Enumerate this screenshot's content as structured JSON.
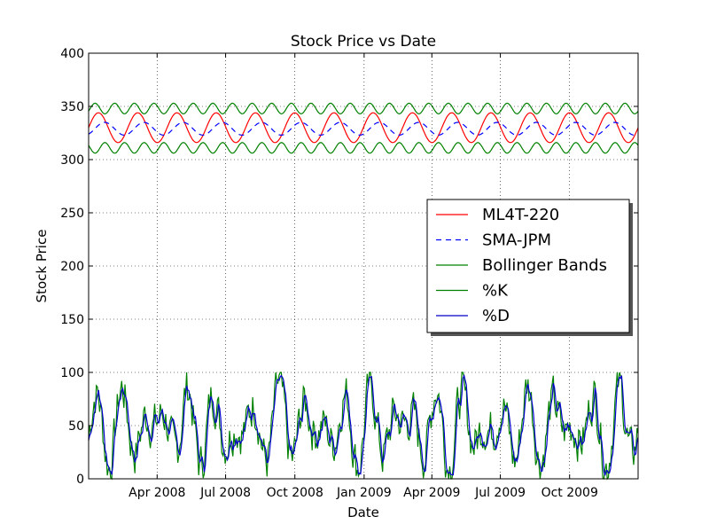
{
  "chart_data": {
    "type": "line",
    "title": "Stock Price vs Date",
    "xlabel": "Date",
    "ylabel": "Stock Price",
    "ylim": [
      0,
      400
    ],
    "xlim": [
      "2008-01-01",
      "2009-12-31"
    ],
    "yticks": [
      0,
      50,
      100,
      150,
      200,
      250,
      300,
      350,
      400
    ],
    "xticks": [
      {
        "date": "2008-04-01",
        "label": "Apr 2008"
      },
      {
        "date": "2008-07-01",
        "label": "Jul 2008"
      },
      {
        "date": "2008-10-01",
        "label": "Oct 2008"
      },
      {
        "date": "2009-01-01",
        "label": "Jan 2009"
      },
      {
        "date": "2009-04-01",
        "label": "Apr 2009"
      },
      {
        "date": "2009-07-01",
        "label": "Jul 2009"
      },
      {
        "date": "2009-10-01",
        "label": "Oct 2009"
      }
    ],
    "grid": true,
    "legend_position": "center-right",
    "series": [
      {
        "name": "ML4T-220",
        "color": "#ff0000",
        "style": "solid",
        "pattern": "oscillating",
        "mean": 330,
        "amplitude": 14,
        "cycles": 14,
        "ymin": 316,
        "ymax": 344
      },
      {
        "name": "SMA-JPM",
        "color": "#0000ff",
        "style": "dashed",
        "pattern": "oscillating",
        "mean": 329,
        "amplitude": 6,
        "cycles": 14,
        "ymin": 323,
        "ymax": 335
      },
      {
        "name": "Bollinger Bands",
        "color": "#008000",
        "style": "solid",
        "pattern": "oscillating band pair",
        "upper_range": [
          343,
          353
        ],
        "lower_range": [
          306,
          316
        ],
        "cycles": 14
      },
      {
        "name": "%K",
        "color": "#008000",
        "style": "solid",
        "pattern": "noisy oscillator",
        "ymin": 0,
        "ymax": 100
      },
      {
        "name": "%D",
        "color": "#0000cc",
        "style": "solid",
        "pattern": "smoothed noisy oscillator",
        "ymin": 0,
        "ymax": 97
      }
    ]
  }
}
